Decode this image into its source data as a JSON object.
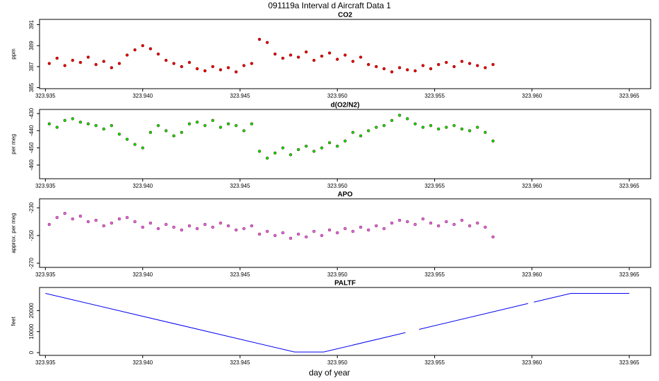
{
  "page": {
    "title": "091119a   Interval d Aircraft Data 1",
    "xlabel": "day of year"
  },
  "chart_data": [
    {
      "type": "scatter",
      "title": "CO2",
      "ylabel": "ppm",
      "color": "#e00000",
      "xlim": [
        323.9347,
        323.9661
      ],
      "xticks": [
        323.935,
        {
          "value": 323.94,
          "label": "323.940"
        },
        323.945,
        {
          "value": 323.95,
          "label": "323.950"
        },
        323.955,
        {
          "value": 323.96,
          "label": "323.960"
        },
        323.965
      ],
      "ylim": [
        384.9,
        391.5
      ],
      "yticks": [
        385,
        387,
        389,
        391
      ],
      "x": [
        323.9352,
        323.9356,
        323.936,
        323.9364,
        323.9368,
        323.9372,
        323.9376,
        323.938,
        323.9384,
        323.9388,
        323.9392,
        323.9396,
        323.94,
        323.9404,
        323.9408,
        323.9412,
        323.9416,
        323.942,
        323.9424,
        323.9428,
        323.9432,
        323.9436,
        323.944,
        323.9444,
        323.9448,
        323.9452,
        323.9456,
        323.946,
        323.9464,
        323.9468,
        323.9472,
        323.9476,
        323.948,
        323.9484,
        323.9488,
        323.9492,
        323.9496,
        323.95,
        323.9504,
        323.9508,
        323.9512,
        323.9516,
        323.952,
        323.9524,
        323.9528,
        323.9532,
        323.9536,
        323.954,
        323.9544,
        323.9548,
        323.9552,
        323.9556,
        323.956,
        323.9564,
        323.9568,
        323.9572,
        323.9576,
        323.958
      ],
      "values": [
        387.3,
        387.8,
        387.1,
        387.6,
        387.4,
        387.9,
        387.2,
        387.5,
        386.9,
        387.3,
        388.1,
        388.6,
        389.0,
        388.7,
        388.2,
        387.6,
        387.3,
        387.0,
        387.4,
        386.8,
        386.6,
        387.0,
        386.7,
        386.9,
        386.5,
        387.1,
        387.3,
        389.6,
        389.3,
        388.2,
        387.8,
        388.1,
        387.9,
        388.4,
        387.6,
        388.0,
        388.3,
        387.7,
        388.1,
        387.5,
        387.9,
        387.2,
        387.0,
        386.8,
        386.5,
        386.9,
        386.7,
        386.6,
        387.1,
        386.8,
        387.2,
        387.4,
        387.0,
        387.5,
        387.3,
        387.1,
        386.9,
        387.2
      ]
    },
    {
      "type": "scatter",
      "title": "d(O2/N2)",
      "ylabel": "per meg",
      "color": "#00dd00",
      "xlim": [
        323.9347,
        323.9661
      ],
      "xticks": [
        323.935,
        {
          "value": 323.94,
          "label": "323.940"
        },
        323.945,
        {
          "value": 323.95,
          "label": "323.950"
        },
        323.955,
        {
          "value": 323.96,
          "label": "323.960"
        },
        323.965
      ],
      "ylim": [
        -468,
        -427.6
      ],
      "yticks": [
        -460,
        -450,
        -440,
        -430
      ],
      "x": [
        323.9352,
        323.9356,
        323.936,
        323.9364,
        323.9368,
        323.9372,
        323.9376,
        323.938,
        323.9384,
        323.9388,
        323.9392,
        323.9396,
        323.94,
        323.9404,
        323.9408,
        323.9412,
        323.9416,
        323.942,
        323.9424,
        323.9428,
        323.9432,
        323.9436,
        323.944,
        323.9444,
        323.9448,
        323.9452,
        323.9456,
        323.946,
        323.9464,
        323.9468,
        323.9472,
        323.9476,
        323.948,
        323.9484,
        323.9488,
        323.9492,
        323.9496,
        323.95,
        323.9504,
        323.9508,
        323.9512,
        323.9516,
        323.952,
        323.9524,
        323.9528,
        323.9532,
        323.9536,
        323.954,
        323.9544,
        323.9548,
        323.9552,
        323.9556,
        323.956,
        323.9564,
        323.9568,
        323.9572,
        323.9576,
        323.958
      ],
      "values": [
        -436,
        -438,
        -434,
        -433,
        -435,
        -436,
        -437,
        -439,
        -437,
        -442,
        -445,
        -448,
        -450,
        -441,
        -437,
        -440,
        -443,
        -441,
        -436,
        -435,
        -437,
        -434,
        -438,
        -436,
        -437,
        -440,
        -436,
        -452,
        -456,
        -453,
        -450,
        -454,
        -451,
        -449,
        -452,
        -450,
        -447,
        -449,
        -446,
        -441,
        -443,
        -440,
        -438,
        -437,
        -434,
        -431,
        -433,
        -436,
        -438,
        -437,
        -439,
        -438,
        -437,
        -439,
        -440,
        -438,
        -441,
        -446
      ]
    },
    {
      "type": "scatter",
      "title": "APO",
      "ylabel": "approx. per meg",
      "color": "#dd66ee",
      "xlim": [
        323.9347,
        323.9661
      ],
      "xticks": [
        323.935,
        {
          "value": 323.94,
          "label": "323.940"
        },
        323.945,
        {
          "value": 323.95,
          "label": "323.950"
        },
        323.955,
        {
          "value": 323.96,
          "label": "323.960"
        },
        323.965
      ],
      "ylim": [
        -273,
        -223.5
      ],
      "yticks": [
        -270,
        -250,
        -230
      ],
      "x": [
        323.9352,
        323.9356,
        323.936,
        323.9364,
        323.9368,
        323.9372,
        323.9376,
        323.938,
        323.9384,
        323.9388,
        323.9392,
        323.9396,
        323.94,
        323.9404,
        323.9408,
        323.9412,
        323.9416,
        323.942,
        323.9424,
        323.9428,
        323.9432,
        323.9436,
        323.944,
        323.9444,
        323.9448,
        323.9452,
        323.9456,
        323.946,
        323.9464,
        323.9468,
        323.9472,
        323.9476,
        323.948,
        323.9484,
        323.9488,
        323.9492,
        323.9496,
        323.95,
        323.9504,
        323.9508,
        323.9512,
        323.9516,
        323.952,
        323.9524,
        323.9528,
        323.9532,
        323.9536,
        323.954,
        323.9544,
        323.9548,
        323.9552,
        323.9556,
        323.956,
        323.9564,
        323.9568,
        323.9572,
        323.9576,
        323.958
      ],
      "values": [
        -242,
        -237,
        -234,
        -238,
        -236,
        -240,
        -239,
        -243,
        -241,
        -238,
        -237,
        -240,
        -244,
        -241,
        -245,
        -242,
        -244,
        -246,
        -243,
        -245,
        -242,
        -244,
        -241,
        -243,
        -246,
        -245,
        -243,
        -249,
        -247,
        -250,
        -248,
        -252,
        -249,
        -251,
        -247,
        -250,
        -246,
        -248,
        -245,
        -247,
        -244,
        -246,
        -243,
        -245,
        -241,
        -239,
        -240,
        -242,
        -238,
        -241,
        -243,
        -240,
        -242,
        -239,
        -243,
        -241,
        -244,
        -251
      ]
    },
    {
      "type": "line",
      "title": "PALTF",
      "ylabel": "feet",
      "color": "#0000ee",
      "xlim": [
        323.9347,
        323.9661
      ],
      "xticks": [
        323.935,
        {
          "value": 323.94,
          "label": "323.940"
        },
        323.945,
        {
          "value": 323.95,
          "label": "323.950"
        },
        323.955,
        {
          "value": 323.96,
          "label": "323.960"
        },
        323.965
      ],
      "ylim": [
        -1300,
        31000
      ],
      "yticks": [
        0,
        10000,
        20000
      ],
      "x": [
        323.935,
        323.9478,
        323.9493,
        323.9535,
        null,
        323.9542,
        323.9598,
        null,
        323.9601,
        323.962,
        323.965
      ],
      "values": [
        28200,
        300,
        300,
        9530,
        null,
        11070,
        23370,
        null,
        24030,
        28200,
        28200
      ]
    }
  ]
}
